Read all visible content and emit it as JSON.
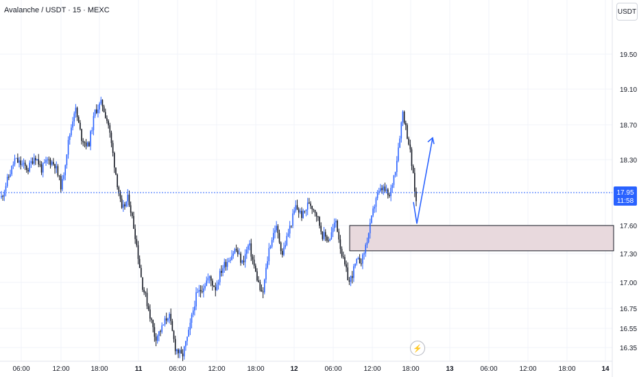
{
  "header": {
    "title": "Avalanche / USDT · 15 · MEXC",
    "currency_label": "USDT"
  },
  "chart_data": {
    "type": "candlestick",
    "title": "Avalanche / USDT · 15 · MEXC",
    "y_ticks": [
      16.35,
      16.55,
      16.75,
      17.0,
      17.3,
      17.6,
      18.3,
      18.7,
      19.1,
      19.5
    ],
    "y_tick_labels": [
      "16.35",
      "16.55",
      "16.75",
      "17.00",
      "17.30",
      "17.60",
      "18.30",
      "18.70",
      "19.10",
      "19.50"
    ],
    "x_tick_labels": [
      "06:00",
      "12:00",
      "18:00",
      "11",
      "06:00",
      "12:00",
      "18:00",
      "12",
      "06:00",
      "12:00",
      "18:00",
      "13",
      "06:00",
      "12:00",
      "18:00",
      "14"
    ],
    "last_price": 17.95,
    "last_price_label": "17.95",
    "countdown_label": "11:58",
    "ylim": [
      16.3,
      19.9
    ],
    "price_path": [
      17.9,
      18.1,
      18.3,
      18.25,
      18.2,
      18.35,
      18.2,
      18.3,
      18.25,
      18.0,
      18.5,
      18.9,
      18.55,
      18.45,
      18.85,
      18.95,
      18.7,
      18.2,
      17.75,
      17.9,
      17.5,
      17.0,
      16.75,
      16.45,
      16.55,
      16.7,
      16.35,
      16.25,
      16.5,
      16.85,
      16.95,
      17.05,
      16.95,
      17.15,
      17.25,
      17.35,
      17.2,
      17.4,
      17.1,
      16.85,
      17.35,
      17.6,
      17.3,
      17.55,
      17.8,
      17.7,
      17.85,
      17.75,
      17.5,
      17.45,
      17.65,
      17.25,
      17.0,
      17.2,
      17.25,
      17.55,
      17.9,
      18.0,
      17.9,
      18.25,
      18.85,
      18.45,
      17.85
    ],
    "support_zone": {
      "low": 17.33,
      "high": 17.6
    },
    "projection_target": 18.55
  },
  "colors": {
    "up": "#2962ff",
    "down": "#131722",
    "last_price_line": "#2962ff",
    "zone_fill": "#e8d9dd",
    "zone_stroke": "#131722",
    "grid": "#f0f3fa",
    "arrow": "#2962ff"
  },
  "icons": {
    "lightning": "lightning-icon"
  }
}
